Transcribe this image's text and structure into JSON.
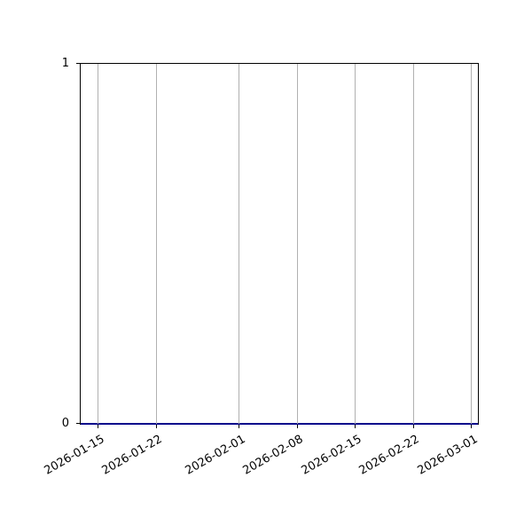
{
  "figure": {
    "background": "#ffffff"
  },
  "chart_data": {
    "type": "line",
    "title": "",
    "xlabel": "",
    "ylabel": "",
    "grid": "vertical-only",
    "grid_color": "#b0b0b0",
    "spine_color": "#000000",
    "tick_label_color": "#000000",
    "x_tick_rotation_deg": 30,
    "xlim": {
      "start": "2026-01-12T21:00:00",
      "end": "2026-03-01T18:00:00"
    },
    "ylim": [
      0,
      1
    ],
    "x_ticks": [
      {
        "label": "2026-01-15",
        "date": "2026-01-15T00:00:00"
      },
      {
        "label": "2026-01-22",
        "date": "2026-01-22T00:00:00"
      },
      {
        "label": "2026-02-01",
        "date": "2026-02-01T00:00:00"
      },
      {
        "label": "2026-02-08",
        "date": "2026-02-08T00:00:00"
      },
      {
        "label": "2026-02-15",
        "date": "2026-02-15T00:00:00"
      },
      {
        "label": "2026-02-22",
        "date": "2026-02-22T00:00:00"
      },
      {
        "label": "2026-03-01",
        "date": "2026-03-01T00:00:00"
      }
    ],
    "y_ticks": [
      {
        "label": "0",
        "value": 0
      },
      {
        "label": "1",
        "value": 1
      }
    ],
    "series": [
      {
        "color": "#00008B",
        "line_width": 2,
        "points": [
          {
            "date": "2026-01-12T21:00:00",
            "value": 0
          },
          {
            "date": "2026-03-01T18:00:00",
            "value": 0
          }
        ]
      }
    ]
  }
}
